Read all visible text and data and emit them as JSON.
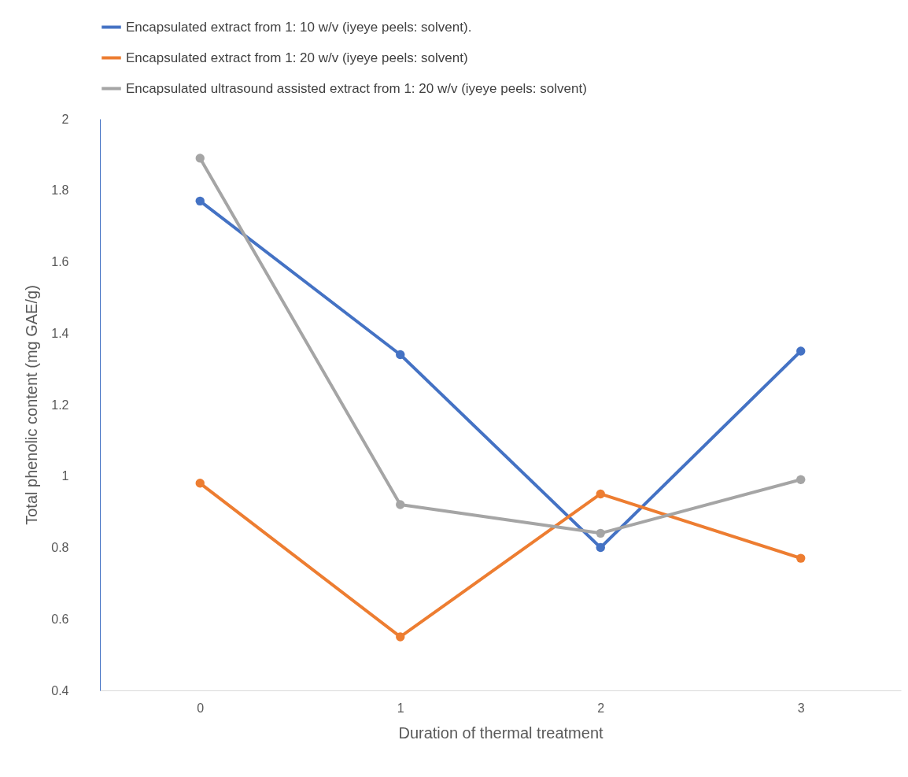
{
  "chart_data": {
    "type": "line",
    "xlabel": "Duration of thermal treatment",
    "ylabel": "Total phenolic content (mg GAE/g)",
    "categories": [
      "0",
      "1",
      "2",
      "3"
    ],
    "series": [
      {
        "name": "Encapsulated extract from 1: 10 w/v (iyeye peels: solvent).",
        "color": "#4472c4",
        "values": [
          1.77,
          1.34,
          0.8,
          1.35
        ]
      },
      {
        "name": " Encapsulated extract from 1: 20 w/v (iyeye peels: solvent)",
        "color": "#ed7d31",
        "values": [
          0.98,
          0.55,
          0.95,
          0.77
        ]
      },
      {
        "name": "Encapsulated ultrasound assisted extract from 1: 20 w/v (iyeye peels: solvent)",
        "color": "#a5a5a5",
        "values": [
          1.89,
          0.92,
          0.84,
          0.99
        ]
      }
    ],
    "ylim": [
      0.4,
      2
    ],
    "yticks": [
      0.4,
      0.6,
      0.8,
      1,
      1.2,
      1.4,
      1.6,
      1.8,
      2
    ],
    "grid": false,
    "legend": "top",
    "marker": "circle",
    "line_style": "solid"
  }
}
